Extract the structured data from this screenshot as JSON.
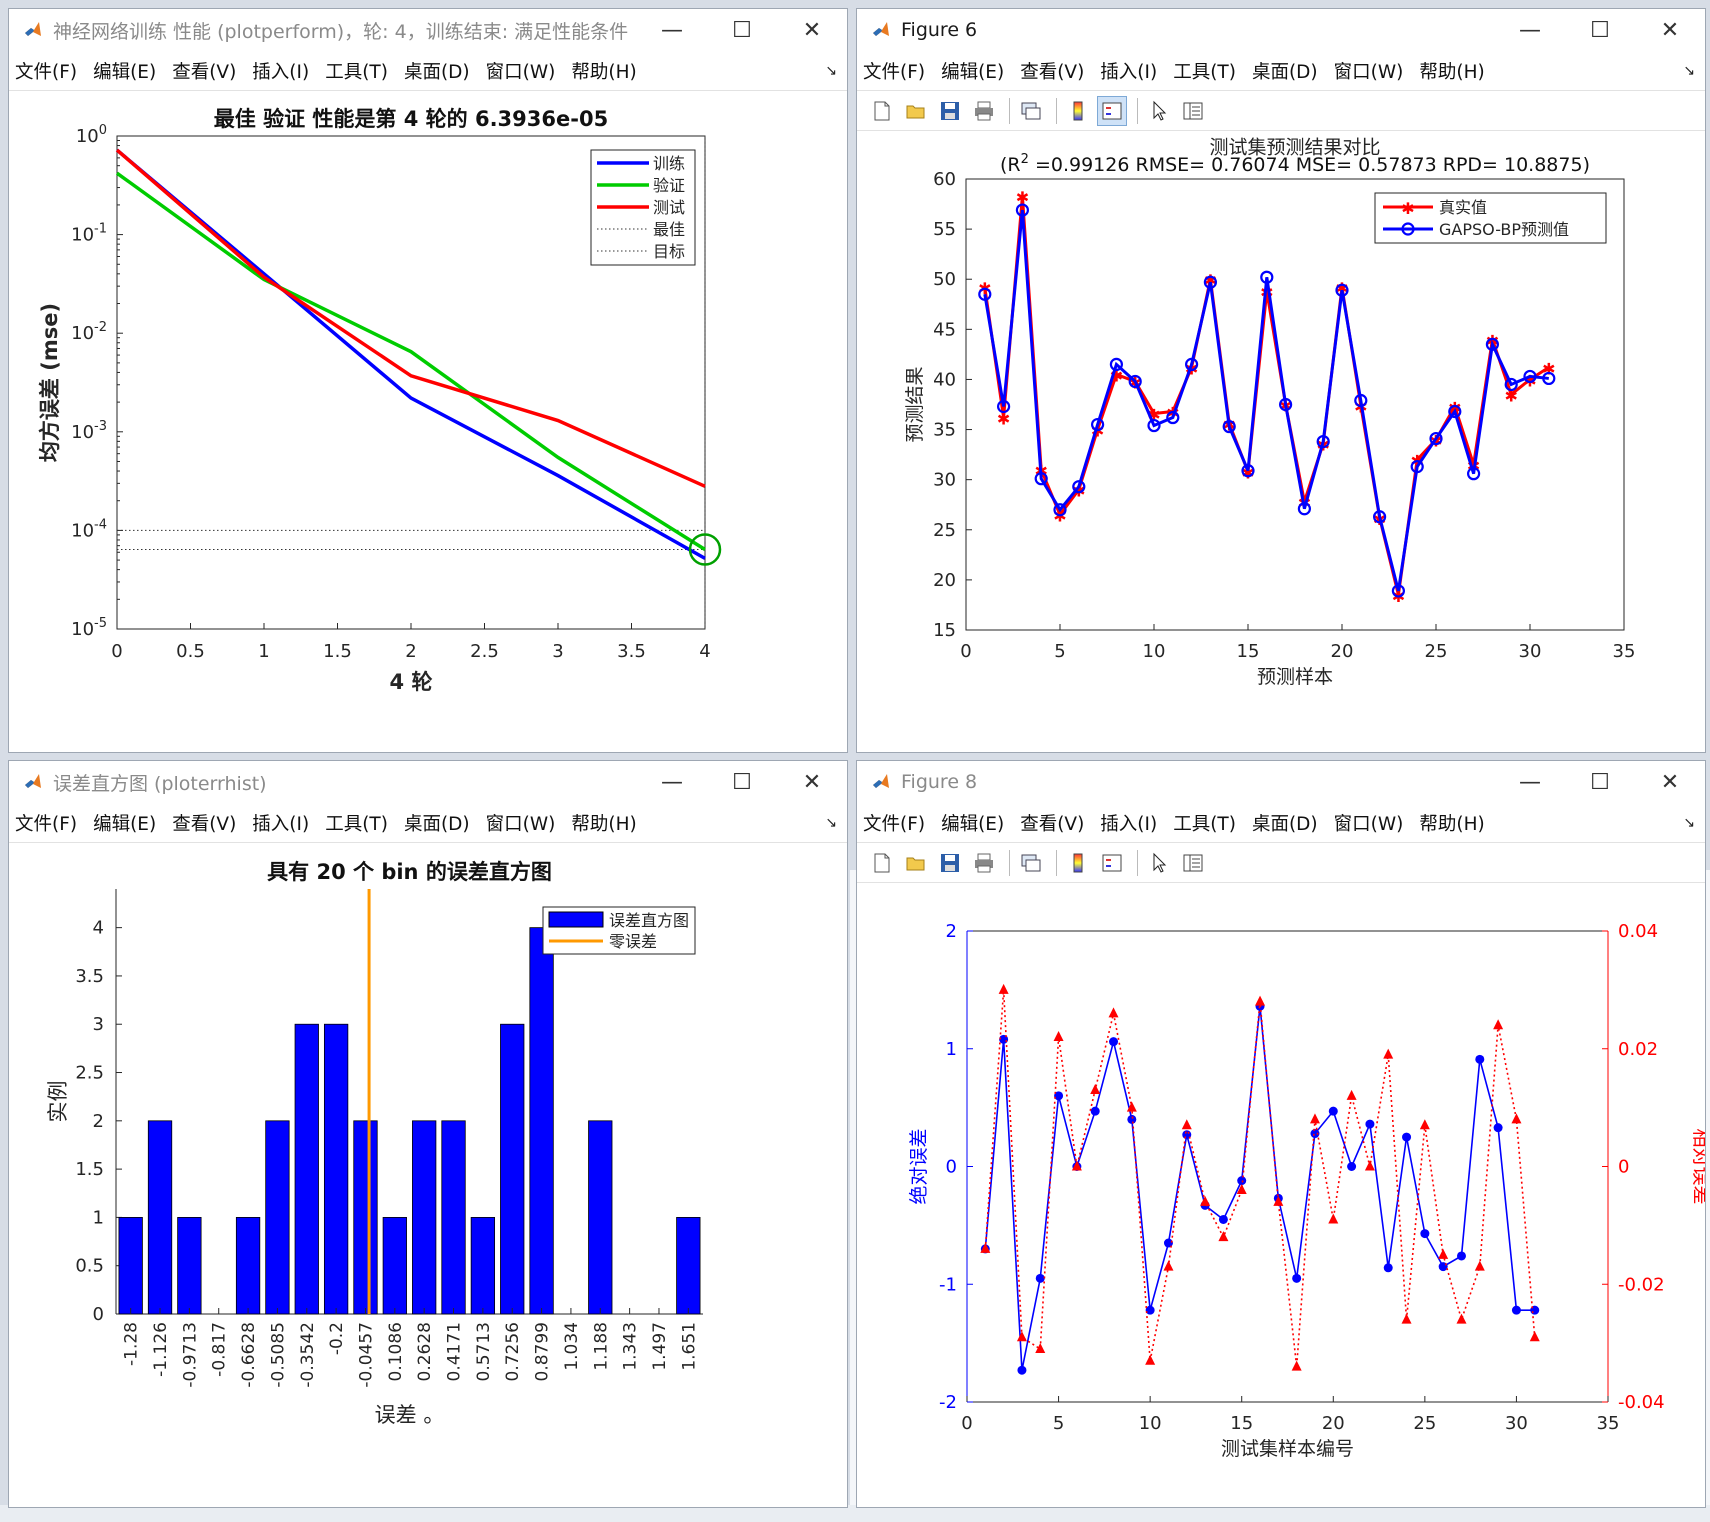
{
  "windows": {
    "perform": {
      "title": "神经网络训练 性能 (plotperform)，轮: 4，训练结束: 满足性能条件",
      "menu": [
        "文件(F)",
        "编辑(E)",
        "查看(V)",
        "插入(I)",
        "工具(T)",
        "桌面(D)",
        "窗口(W)",
        "帮助(H)"
      ]
    },
    "fig6": {
      "title": "Figure 6",
      "menu": [
        "文件(F)",
        "编辑(E)",
        "查看(V)",
        "插入(I)",
        "工具(T)",
        "桌面(D)",
        "窗口(W)",
        "帮助(H)"
      ]
    },
    "hist": {
      "title": "误差直方图 (ploterrhist)",
      "menu": [
        "文件(F)",
        "编辑(E)",
        "查看(V)",
        "插入(I)",
        "工具(T)",
        "桌面(D)",
        "窗口(W)",
        "帮助(H)"
      ]
    },
    "fig8": {
      "title": "Figure 8",
      "menu": [
        "文件(F)",
        "编辑(E)",
        "查看(V)",
        "插入(I)",
        "工具(T)",
        "桌面(D)",
        "窗口(W)",
        "帮助(H)"
      ]
    }
  },
  "chart_data": [
    {
      "id": "perform",
      "type": "line",
      "title": "最佳 验证 性能是第 4 轮的 6.3936e-05",
      "xlabel": "4 轮",
      "ylabel": "均方误差 (mse)",
      "xlim": [
        0,
        4
      ],
      "ylim": [
        1e-05,
        1
      ],
      "yscale": "log",
      "xticks": [
        "0",
        "0.5",
        "1",
        "1.5",
        "2",
        "2.5",
        "3",
        "3.5",
        "4"
      ],
      "yticks_exp": [
        "-5",
        "-4",
        "-3",
        "-2",
        "-1",
        "0"
      ],
      "series": [
        {
          "name": "训练",
          "color": "#0000ff",
          "x": [
            0,
            1,
            2,
            3,
            4
          ],
          "y": [
            0.72,
            0.04,
            0.0022,
            0.00036,
            5.2e-05
          ]
        },
        {
          "name": "验证",
          "color": "#00cc00",
          "x": [
            0,
            1,
            2,
            3,
            4
          ],
          "y": [
            0.42,
            0.035,
            0.0065,
            0.00055,
            6.4e-05
          ]
        },
        {
          "name": "测试",
          "color": "#ff0000",
          "x": [
            0,
            1,
            2,
            3,
            4
          ],
          "y": [
            0.72,
            0.037,
            0.0037,
            0.0013,
            0.00028
          ]
        }
      ],
      "best_label": "最佳",
      "goal_label": "目标",
      "best_value": 6.4e-05,
      "goal_value": 0.0001,
      "best_epoch": 4,
      "legend_position": "top-right"
    },
    {
      "id": "fig6",
      "type": "line",
      "title_line1": "测试集预测结果对比",
      "title_line2_prefix": "(R",
      "title_line2_sup": "2",
      "title_line2_rest": " =0.99126 RMSE= 0.76074 MSE= 0.57873 RPD= 10.8875)",
      "xlabel": "预测样本",
      "ylabel": "预测结果",
      "xlim": [
        0,
        35
      ],
      "ylim": [
        15,
        60
      ],
      "xticks": [
        0,
        5,
        10,
        15,
        20,
        25,
        30,
        35
      ],
      "yticks": [
        15,
        20,
        25,
        30,
        35,
        40,
        45,
        50,
        55,
        60
      ],
      "x": [
        1,
        2,
        3,
        4,
        5,
        6,
        7,
        8,
        9,
        10,
        11,
        12,
        13,
        14,
        15,
        16,
        17,
        18,
        19,
        20,
        21,
        22,
        23,
        24,
        25,
        26,
        27,
        28,
        29,
        30,
        31
      ],
      "series": [
        {
          "name": "真实值",
          "color": "#ff0000",
          "marker": "*",
          "values": [
            49.2,
            36.2,
            58.3,
            31.0,
            26.5,
            29.0,
            35.0,
            40.5,
            39.8,
            36.6,
            36.8,
            41.2,
            50.0,
            35.6,
            30.8,
            48.8,
            37.5,
            27.8,
            33.6,
            49.2,
            37.4,
            26.2,
            18.5,
            32.0,
            34.0,
            37.3,
            31.5,
            44.0,
            38.5,
            40.0,
            41.2
          ]
        },
        {
          "name": "GAPSO-BP预测值",
          "color": "#0000ff",
          "marker": "o",
          "values": [
            48.5,
            37.3,
            56.9,
            30.1,
            27.0,
            29.3,
            35.5,
            41.5,
            39.8,
            35.4,
            36.2,
            41.5,
            49.7,
            35.3,
            30.9,
            50.2,
            37.5,
            27.1,
            33.8,
            48.9,
            37.9,
            26.3,
            18.9,
            31.3,
            34.1,
            36.8,
            30.6,
            43.5,
            39.5,
            40.3,
            40.1
          ]
        }
      ],
      "legend_position": "top-right"
    },
    {
      "id": "hist",
      "type": "bar",
      "title": "具有 20 个 bin 的误差直方图",
      "xlabel": "误差 。",
      "ylabel": "实例",
      "ylim": [
        0,
        4.4
      ],
      "yticks": [
        "0",
        "0.5",
        "1",
        "1.5",
        "2",
        "2.5",
        "3",
        "3.5",
        "4"
      ],
      "categories": [
        "-1.28",
        "-1.126",
        "-0.9713",
        "-0.817",
        "-0.6628",
        "-0.5085",
        "-0.3542",
        "-0.2",
        "-0.0457",
        "0.1086",
        "0.2628",
        "0.4171",
        "0.5713",
        "0.7256",
        "0.8799",
        "1.034",
        "1.188",
        "1.343",
        "1.497",
        "1.651"
      ],
      "values": [
        1,
        2,
        1,
        0,
        1,
        2,
        3,
        3,
        2,
        1,
        2,
        2,
        1,
        3,
        4,
        0,
        2,
        0,
        0,
        1
      ],
      "series": [
        {
          "name": "误差直方图",
          "color": "#0000ff"
        },
        {
          "name": "零误差",
          "color": "#ff9900"
        }
      ],
      "zero_error_position": -0.027,
      "legend_position": "top-right"
    },
    {
      "id": "fig8",
      "type": "line",
      "xlabel": "测试集样本编号",
      "ylabel_left": "绝对误差",
      "ylabel_right": "相对误差",
      "xlim": [
        0,
        35
      ],
      "ylim_left": [
        -2,
        2
      ],
      "ylim_right": [
        -0.04,
        0.04
      ],
      "xticks": [
        0,
        5,
        10,
        15,
        20,
        25,
        30,
        35
      ],
      "yticks_left": [
        "-2",
        "-1",
        "0",
        "1",
        "2"
      ],
      "yticks_right": [
        "-0.04",
        "-0.02",
        "0",
        "0.02",
        "0.04"
      ],
      "x": [
        1,
        2,
        3,
        4,
        5,
        6,
        7,
        8,
        9,
        10,
        11,
        12,
        13,
        14,
        15,
        16,
        17,
        18,
        19,
        20,
        21,
        22,
        23,
        24,
        25,
        26,
        27,
        28,
        29,
        30,
        31
      ],
      "series": [
        {
          "name": "绝对误差",
          "axis": "left",
          "color": "#0000ff",
          "marker": "o",
          "values": [
            -0.7,
            1.08,
            -1.73,
            -0.95,
            0.6,
            0.0,
            0.47,
            1.06,
            0.4,
            -1.22,
            -0.65,
            0.27,
            -0.33,
            -0.45,
            -0.12,
            1.36,
            -0.27,
            -0.95,
            0.28,
            0.47,
            0.0,
            0.36,
            -0.86,
            0.25,
            -0.57,
            -0.85,
            -0.76,
            0.91,
            0.33,
            -1.22,
            -1.22
          ]
        },
        {
          "name": "相对误差",
          "axis": "right",
          "color": "#ff0000",
          "marker": "^",
          "values": [
            -0.014,
            0.03,
            -0.029,
            -0.031,
            0.022,
            0.0,
            0.013,
            0.026,
            0.01,
            -0.033,
            -0.017,
            0.007,
            -0.006,
            -0.012,
            -0.004,
            0.028,
            -0.006,
            -0.034,
            0.008,
            -0.009,
            0.012,
            0.0,
            0.019,
            -0.026,
            0.007,
            -0.015,
            -0.026,
            -0.017,
            0.024,
            0.008,
            -0.029
          ]
        }
      ]
    }
  ]
}
